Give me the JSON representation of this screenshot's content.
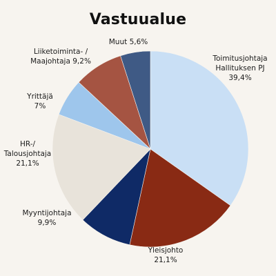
{
  "chart_data": {
    "type": "pie",
    "title": "Vastuualue",
    "slices": [
      {
        "label_lines": [
          "Toimitusjohtaja",
          "Hallituksen PJ",
          "39,4%"
        ],
        "value": 39.4,
        "color": "#c9dff5"
      },
      {
        "label_lines": [
          "Yleisjohto",
          "21,1%"
        ],
        "value": 21.1,
        "color": "#892a14"
      },
      {
        "label_lines": [
          "Myyntijohtaja",
          "9,9%"
        ],
        "value": 9.9,
        "color": "#0f2a66"
      },
      {
        "label_lines": [
          "HR-/",
          "Talousjohtaja",
          "21,1%"
        ],
        "value": 21.1,
        "color": "#e8e3da"
      },
      {
        "label_lines": [
          "Yrittäjä",
          "7%"
        ],
        "value": 7.0,
        "color": "#9ec6ec"
      },
      {
        "label_lines": [
          "Liiketoiminta- /",
          "Maajohtaja 9,2%"
        ],
        "value": 9.2,
        "color": "#a55442"
      },
      {
        "label_lines": [
          "Muut 5,6%"
        ],
        "value": 5.6,
        "color": "#3f5a85"
      }
    ]
  }
}
